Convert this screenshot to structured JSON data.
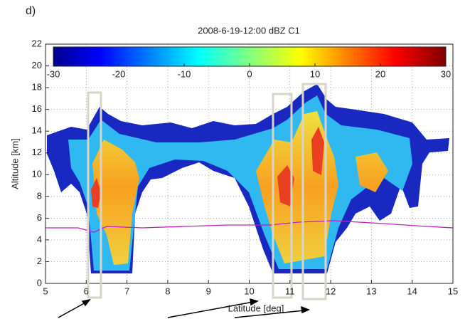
{
  "chart_data": {
    "type": "heatmap",
    "panel": "d)",
    "title": "2008-6-19-12:00 dBZ C1",
    "x_label": "Latitude [deg]",
    "y_label": "Altitude [km]",
    "xlim": [
      5,
      15
    ],
    "xticks": [
      5,
      6,
      7,
      8,
      9,
      10,
      11,
      12,
      13,
      14,
      15
    ],
    "ylim": [
      0,
      22
    ],
    "yticks": [
      0,
      2,
      4,
      6,
      8,
      10,
      12,
      14,
      16,
      18,
      20,
      22
    ],
    "grid": true,
    "colorbar": {
      "lim": [
        -30,
        30
      ],
      "ticks": [
        -30,
        -20,
        -10,
        0,
        10,
        20,
        30
      ]
    }
  }
}
